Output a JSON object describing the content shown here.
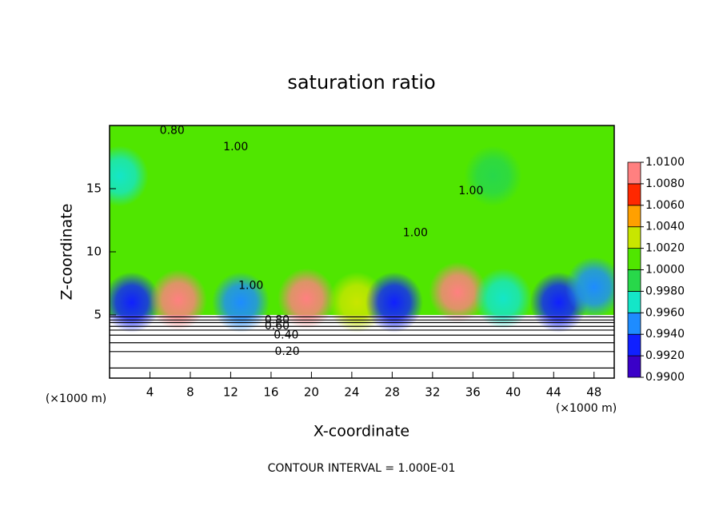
{
  "chart_data": {
    "type": "contour",
    "title": "saturation ratio",
    "x_label": "X-coordinate",
    "y_label": "Z-coordinate",
    "x_unit_left": "(×1000 m)",
    "x_unit_right": "(×1000 m)",
    "footer": "CONTOUR INTERVAL = 1.000E-01",
    "xlim": [
      0,
      50
    ],
    "xticks": [
      4,
      8,
      12,
      16,
      20,
      24,
      28,
      32,
      36,
      40,
      44,
      48
    ],
    "ylim": [
      0,
      20
    ],
    "yticks": [
      5,
      10,
      15
    ],
    "base_value": 1.001,
    "field_zlim": [
      5,
      20
    ],
    "features": [
      {
        "x": 2.2,
        "z": 6.0,
        "value": 0.9925
      },
      {
        "x": 6.8,
        "z": 6.2,
        "value": 1.0085
      },
      {
        "x": 13,
        "z": 6.0,
        "value": 0.9945
      },
      {
        "x": 19.5,
        "z": 6.3,
        "value": 1.0085
      },
      {
        "x": 24.5,
        "z": 6.0,
        "value": 1.003
      },
      {
        "x": 28.2,
        "z": 6.0,
        "value": 0.993
      },
      {
        "x": 34.5,
        "z": 6.8,
        "value": 1.0085
      },
      {
        "x": 39,
        "z": 6.3,
        "value": 0.997
      },
      {
        "x": 44.5,
        "z": 6.0,
        "value": 0.9925
      },
      {
        "x": 48,
        "z": 7.2,
        "value": 0.995
      },
      {
        "x": 1,
        "z": 16,
        "value": 0.997
      },
      {
        "x": 38,
        "z": 16,
        "value": 0.998
      }
    ],
    "contour_lines": [
      {
        "level": 0.1,
        "z": 0.8
      },
      {
        "level": 0.2,
        "z": 2.1
      },
      {
        "level": 0.3,
        "z": 2.8
      },
      {
        "level": 0.4,
        "z": 3.4
      },
      {
        "level": 0.5,
        "z": 3.8
      },
      {
        "level": 0.6,
        "z": 4.1
      },
      {
        "level": 0.7,
        "z": 4.4
      },
      {
        "level": 0.8,
        "z": 4.6
      },
      {
        "level": 0.9,
        "z": 4.85
      }
    ],
    "contour_labels": [
      {
        "value": 0.8,
        "label": "0.80",
        "x": 6.2,
        "z": 19.6
      },
      {
        "value": 1.0,
        "label": "1.00",
        "x": 12.5,
        "z": 18.3
      },
      {
        "value": 1.0,
        "label": "1.00",
        "x": 14,
        "z": 7.3
      },
      {
        "value": 1.0,
        "label": "1.00",
        "x": 30.3,
        "z": 11.5
      },
      {
        "value": 1.0,
        "label": "1.00",
        "x": 35.8,
        "z": 14.8
      },
      {
        "value": 0.8,
        "label": "0.80",
        "x": 16.6,
        "z": 4.6
      },
      {
        "value": 0.6,
        "label": "0.60",
        "x": 16.6,
        "z": 4.1
      },
      {
        "value": 0.4,
        "label": "0.40",
        "x": 17.5,
        "z": 3.4
      },
      {
        "value": 0.2,
        "label": "0.20",
        "x": 17.6,
        "z": 2.1
      }
    ],
    "colorbar": {
      "ticks": [
        {
          "value": 0.99,
          "label": "0.9900"
        },
        {
          "value": 0.992,
          "label": "0.9920"
        },
        {
          "value": 0.994,
          "label": "0.9940"
        },
        {
          "value": 0.996,
          "label": "0.9960"
        },
        {
          "value": 0.998,
          "label": "0.9980"
        },
        {
          "value": 1.0,
          "label": "1.0000"
        },
        {
          "value": 1.002,
          "label": "1.0020"
        },
        {
          "value": 1.004,
          "label": "1.0040"
        },
        {
          "value": 1.006,
          "label": "1.0060"
        },
        {
          "value": 1.008,
          "label": "1.0080"
        },
        {
          "value": 1.01,
          "label": "1.0100"
        }
      ],
      "colors": [
        "#3a00c8",
        "#1020ff",
        "#1e8cff",
        "#14e6c8",
        "#28d84a",
        "#50e600",
        "#c8e600",
        "#ffa000",
        "#ff2800",
        "#ff8080"
      ]
    }
  }
}
